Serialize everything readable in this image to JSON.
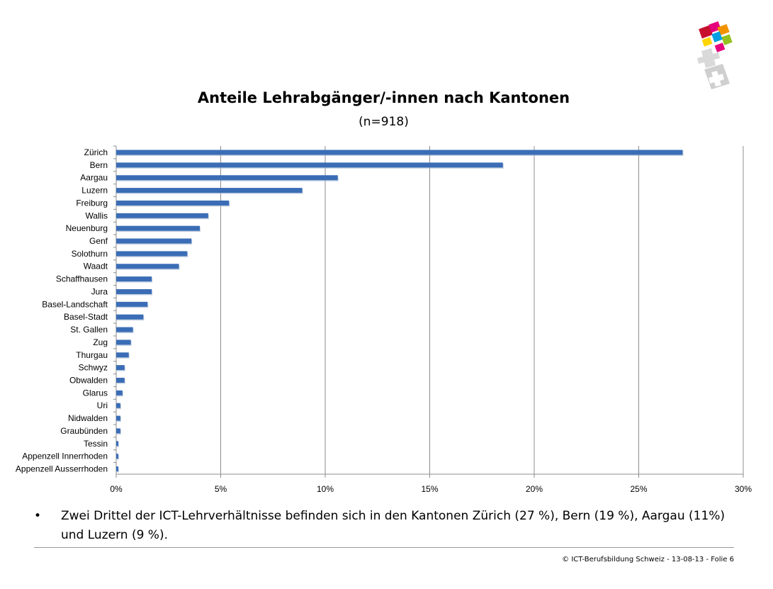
{
  "chart_data": {
    "type": "bar",
    "orientation": "horizontal",
    "title": "Anteile Lehrabgänger/-innen nach Kantonen",
    "subtitle": "(n=918)",
    "xlim": [
      0,
      30
    ],
    "x_ticks": [
      "0%",
      "5%",
      "10%",
      "15%",
      "20%",
      "25%",
      "30%"
    ],
    "grid": true,
    "bar_color": "#3b6db6",
    "categories": [
      "Zürich",
      "Bern",
      "Aargau",
      "Luzern",
      "Freiburg",
      "Wallis",
      "Neuenburg",
      "Genf",
      "Solothurn",
      "Waadt",
      "Schaffhausen",
      "Jura",
      "Basel-Landschaft",
      "Basel-Stadt",
      "St. Gallen",
      "Zug",
      "Thurgau",
      "Schwyz",
      "Obwalden",
      "Glarus",
      "Uri",
      "Nidwalden",
      "Graubünden",
      "Tessin",
      "Appenzell Innerrhoden",
      "Appenzell Ausserrhoden"
    ],
    "values": [
      27.1,
      18.5,
      10.6,
      8.9,
      5.4,
      4.4,
      4.0,
      3.6,
      3.4,
      3.0,
      1.7,
      1.7,
      1.5,
      1.3,
      0.8,
      0.7,
      0.6,
      0.4,
      0.4,
      0.3,
      0.2,
      0.2,
      0.2,
      0.1,
      0.1,
      0.1
    ]
  },
  "note": {
    "bullet": "•",
    "text": "Zwei Drittel der ICT-Lehrverhältnisse befinden sich in den Kantonen Zürich (27 %), Bern (19 %), Aargau (11%) und Luzern (9 %)."
  },
  "footer": "© ICT-Berufsbildung Schweiz - 13-08-13 - Folie 6",
  "logo": {
    "name": "ict-berufsbildung-logo",
    "colors": [
      "#c8102e",
      "#e5007d",
      "#f39200",
      "#95c11f",
      "#009fe3",
      "#ffd500",
      "#a6a6a6"
    ]
  }
}
